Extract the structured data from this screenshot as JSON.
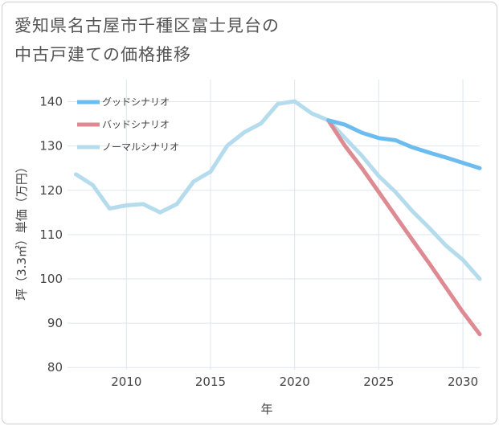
{
  "chart_data": {
    "type": "line",
    "title": "愛知県名古屋市千種区富士見台の\n中古戸建ての価格推移",
    "xlabel": "年",
    "ylabel": "坪（3.3㎡）単価（万円）",
    "xlim": [
      2006.5,
      2031
    ],
    "ylim": [
      79.5,
      145
    ],
    "xticks": [
      2010,
      2015,
      2020,
      2025,
      2030
    ],
    "yticks": [
      80,
      90,
      100,
      110,
      120,
      130,
      140
    ],
    "grid": true,
    "legend_position": "top-left",
    "series": [
      {
        "name": "グッドシナリオ",
        "color": "#6dbcf0",
        "x": [
          2022,
          2023,
          2024,
          2025,
          2026,
          2027,
          2028,
          2029,
          2030,
          2031
        ],
        "y": [
          135.8,
          134.8,
          133.0,
          131.8,
          131.3,
          129.7,
          128.5,
          127.4,
          126.2,
          125.0
        ]
      },
      {
        "name": "バッドシナリオ",
        "color": "#de8a93",
        "x": [
          2022,
          2023,
          2024,
          2025,
          2026,
          2027,
          2028,
          2029,
          2030,
          2031
        ],
        "y": [
          135.8,
          130.0,
          125.0,
          119.6,
          114.2,
          108.8,
          103.5,
          98.0,
          92.5,
          87.5
        ]
      },
      {
        "name": "ノーマルシナリオ",
        "color": "#b5dcec",
        "x": [
          2007,
          2008,
          2009,
          2010,
          2011,
          2012,
          2013,
          2014,
          2015,
          2016,
          2017,
          2018,
          2019,
          2020,
          2021,
          2022,
          2023,
          2024,
          2025,
          2026,
          2027,
          2028,
          2029,
          2030,
          2031
        ],
        "y": [
          123.6,
          121.2,
          115.9,
          116.6,
          116.9,
          115.0,
          116.9,
          122.0,
          124.2,
          130.1,
          133.1,
          135.1,
          139.5,
          140.1,
          137.4,
          135.8,
          131.8,
          127.8,
          123.2,
          119.6,
          115.3,
          111.5,
          107.5,
          104.3,
          100.0
        ]
      }
    ]
  }
}
